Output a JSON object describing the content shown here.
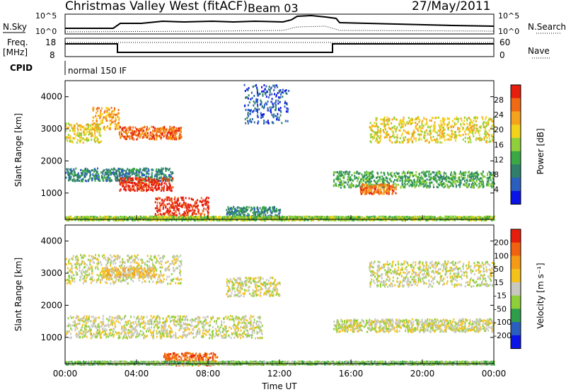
{
  "header": {
    "station": "Christmas Valley West (fitACF)",
    "beam": "Beam 03",
    "date": "27/May/2011"
  },
  "strips": {
    "nsky_label": "N.Sky",
    "nsky_ticks": [
      "10^5",
      "10^0"
    ],
    "nsearch_label": "N.Search",
    "nsearch_ticks": [
      "10^5",
      "10^0"
    ],
    "freq_label_1": "Freq.",
    "freq_label_2": "[MHz]",
    "freq_ticks": [
      "18",
      "8"
    ],
    "nave_label": "Nave",
    "nave_ticks": [
      "60",
      "0"
    ],
    "cpid_label": "CPID",
    "cpid_value": "normal 150 IF"
  },
  "chart_data": [
    {
      "type": "heatmap",
      "name": "power",
      "ylabel": "Slant Range [km]",
      "yticks": [
        "4000",
        "3000",
        "2000",
        "1000"
      ],
      "ylim": [
        180,
        4500
      ],
      "xlim": [
        0,
        24
      ],
      "colorbar_label": "Power [dB]",
      "colorbar_ticks": [
        "28",
        "24",
        "20",
        "16",
        "12",
        "8",
        "4"
      ],
      "colors": [
        "#0a14e6",
        "#2a5fbf",
        "#2f7f6a",
        "#3aa845",
        "#8fd03a",
        "#f2d21a",
        "#f5a21c",
        "#f06a14",
        "#e61e0e"
      ],
      "scatter_bands": [
        {
          "t0": 0.0,
          "t1": 2.0,
          "r0": 2600,
          "r1": 3200,
          "level": 5
        },
        {
          "t0": 1.5,
          "t1": 3.0,
          "r0": 3000,
          "r1": 3700,
          "level": 6
        },
        {
          "t0": 3.0,
          "t1": 6.5,
          "r0": 2700,
          "r1": 3100,
          "level": 7
        },
        {
          "t0": 0.0,
          "t1": 6.0,
          "r0": 1400,
          "r1": 1800,
          "level": 2
        },
        {
          "t0": 3.0,
          "t1": 6.0,
          "r0": 1100,
          "r1": 1500,
          "level": 8
        },
        {
          "t0": 5.0,
          "t1": 8.0,
          "r0": 300,
          "r1": 900,
          "level": 8
        },
        {
          "t0": 9.0,
          "t1": 12.0,
          "r0": 200,
          "r1": 600,
          "level": 2
        },
        {
          "t0": 10.0,
          "t1": 12.5,
          "r0": 3200,
          "r1": 4400,
          "level": 1
        },
        {
          "t0": 15.0,
          "t1": 24.0,
          "r0": 1200,
          "r1": 1700,
          "level": 3
        },
        {
          "t0": 17.0,
          "t1": 24.0,
          "r0": 2600,
          "r1": 3400,
          "level": 5
        },
        {
          "t0": 16.5,
          "t1": 18.5,
          "r0": 1000,
          "r1": 1300,
          "level": 7
        },
        {
          "t0": 0.0,
          "t1": 24.0,
          "r0": 180,
          "r1": 300,
          "level": 4
        }
      ]
    },
    {
      "type": "heatmap",
      "name": "velocity",
      "ylabel": "Slant Range [km]",
      "yticks": [
        "4000",
        "3000",
        "2000",
        "1000"
      ],
      "ylim": [
        180,
        4500
      ],
      "xlim": [
        0,
        24
      ],
      "xlabel": "Time UT",
      "xticks": [
        "00:00",
        "04:00",
        "08:00",
        "12:00",
        "16:00",
        "20:00",
        "00:00"
      ],
      "colorbar_label": "Velocity [m s⁻¹]",
      "colorbar_ticks": [
        "200",
        "100",
        "50",
        "15",
        "-15",
        "-50",
        "-100",
        "-200"
      ],
      "colors": [
        "#0a14e6",
        "#2a5fbf",
        "#2f9e4a",
        "#8fd03a",
        "#c8c8c0",
        "#f5c21c",
        "#f59a14",
        "#f0620f",
        "#e61e0e"
      ],
      "scatter_bands": [
        {
          "t0": 0.0,
          "t1": 6.5,
          "r0": 2700,
          "r1": 3600,
          "level": 4
        },
        {
          "t0": 2.0,
          "t1": 5.0,
          "r0": 2900,
          "r1": 3200,
          "level": 5
        },
        {
          "t0": 0.0,
          "t1": 11.0,
          "r0": 1000,
          "r1": 1700,
          "level": 4
        },
        {
          "t0": 5.5,
          "t1": 8.5,
          "r0": 150,
          "r1": 550,
          "level": 7
        },
        {
          "t0": 9.0,
          "t1": 12.0,
          "r0": 2300,
          "r1": 2900,
          "level": 4
        },
        {
          "t0": 15.0,
          "t1": 24.0,
          "r0": 1200,
          "r1": 1600,
          "level": 4
        },
        {
          "t0": 17.0,
          "t1": 24.0,
          "r0": 2600,
          "r1": 3400,
          "level": 4
        },
        {
          "t0": 0.0,
          "t1": 24.0,
          "r0": 180,
          "r1": 280,
          "level": 3
        }
      ]
    }
  ]
}
